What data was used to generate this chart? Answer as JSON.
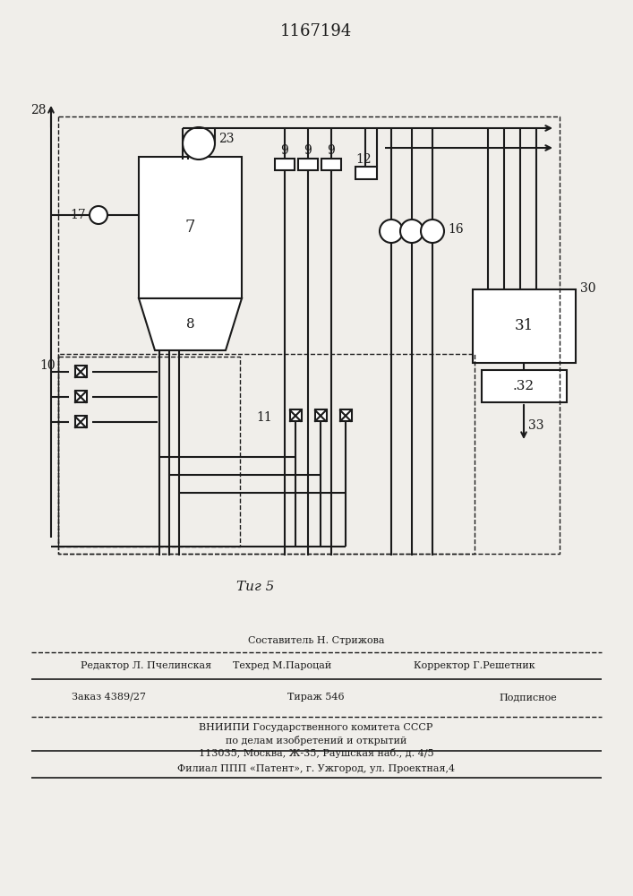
{
  "title": "1167194",
  "fig_label": "Τиг 5",
  "background_color": "#f0eeea",
  "line_color": "#1a1a1a",
  "footer_sestavitel": "Составитель Н. Стрижова",
  "footer_redaktor": "Редактор Л. Пчелинская",
  "footer_tehred": "Техред М.Пароцай",
  "footer_korrektor": "Корректор Г.Решетник",
  "footer_zakaz": "Заказ 4389/27",
  "footer_tirazh": "Тираж 546",
  "footer_podpisnoe": "Подписное",
  "footer_vniip1": "ВНИИПИ Государственного комитета СССР",
  "footer_vniip2": "по делам изобретений и открытий",
  "footer_addr": "113035, Москва, Ж-35, Раушская наб., д. 4/5",
  "footer_filial": "Филиал ППП «Патент», г. Ужгород, ул. Проектная,4"
}
